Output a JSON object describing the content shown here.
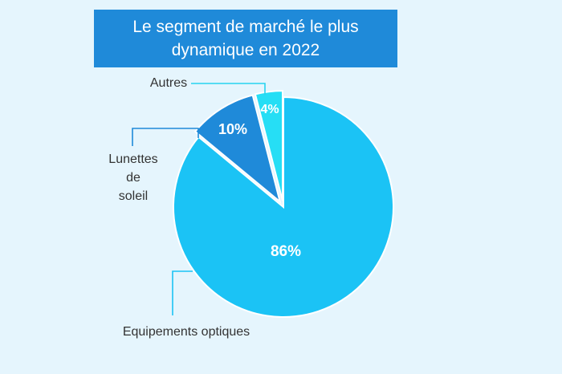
{
  "chart_data": {
    "type": "pie",
    "title": [
      "Le segment de marché le plus",
      "dynamique en 2022"
    ],
    "slices": [
      {
        "label": "Equipements optiques",
        "value": 86,
        "value_label": "86%",
        "color": "#1bc3f5"
      },
      {
        "label": "Lunettes de soleil",
        "label_lines": [
          "Lunettes",
          "de",
          "soleil"
        ],
        "value": 10,
        "value_label": "10%",
        "color": "#1f8ad9"
      },
      {
        "label": "Autres",
        "value": 4,
        "value_label": "4%",
        "color": "#26def5"
      }
    ]
  }
}
